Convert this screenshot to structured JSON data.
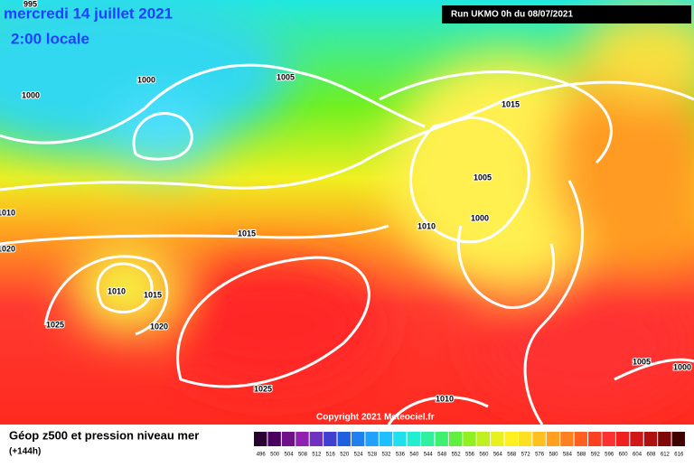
{
  "header": {
    "date": "mercredi 14 juillet 2021",
    "time": "2:00 locale",
    "run": "Run UKMO 0h du 08/07/2021"
  },
  "isobar_labels": [
    "995",
    "1000",
    "1000",
    "1005",
    "1015",
    "1005",
    "1010",
    "1000",
    "1010",
    "1020",
    "1015",
    "1010",
    "1015",
    "1025",
    "1020",
    "1025",
    "1010",
    "1005",
    "1000"
  ],
  "copyright": "Copyright 2021 Meteociel.fr",
  "legend": {
    "title": "Géop z500 et pression niveau mer",
    "subtitle": "(+144h)",
    "scale": [
      496,
      500,
      504,
      508,
      512,
      516,
      520,
      524,
      528,
      532,
      536,
      540,
      544,
      548,
      552,
      556,
      560,
      564,
      568,
      572,
      576,
      580,
      584,
      588,
      592,
      596,
      600,
      604,
      608,
      612,
      616
    ]
  }
}
